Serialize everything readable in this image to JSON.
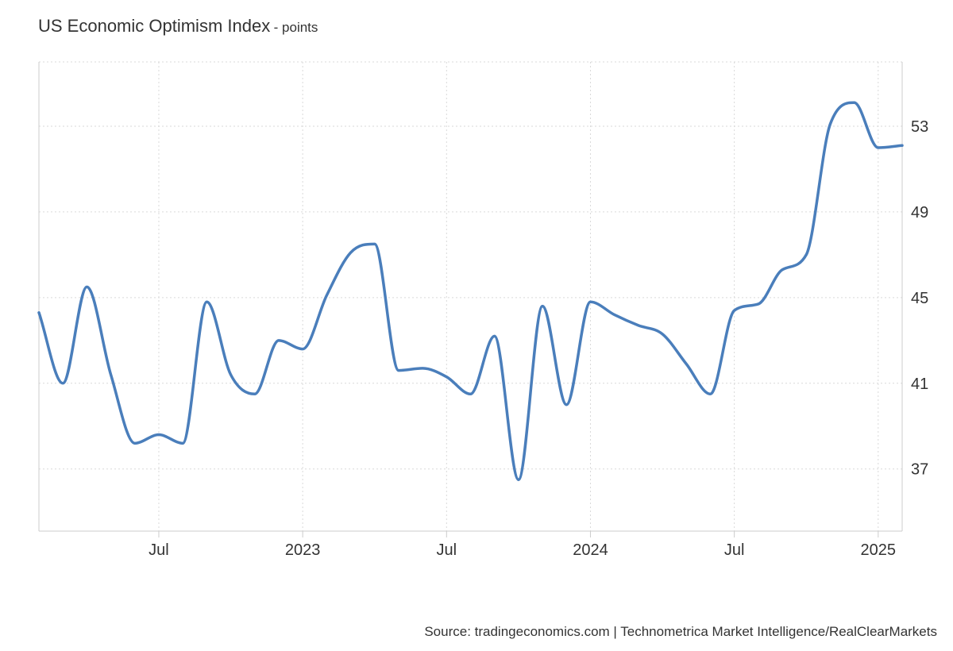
{
  "header": {
    "title": "US Economic Optimism Index",
    "unit": "- points"
  },
  "source": "Source: tradingeconomics.com | Technometrica Market Intelligence/RealClearMarkets",
  "colors": {
    "line": "#4a7ebb",
    "grid": "#d9d9d9",
    "axis": "#cccccc"
  },
  "chart_data": {
    "type": "line",
    "title": "US Economic Optimism Index",
    "unit": "points",
    "x": [
      "2022-02",
      "2022-03",
      "2022-04",
      "2022-05",
      "2022-06",
      "2022-07",
      "2022-08",
      "2022-09",
      "2022-10",
      "2022-11",
      "2022-12",
      "2023-01",
      "2023-02",
      "2023-03",
      "2023-04",
      "2023-05",
      "2023-06",
      "2023-07",
      "2023-08",
      "2023-09",
      "2023-10",
      "2023-11",
      "2023-12",
      "2024-01",
      "2024-02",
      "2024-03",
      "2024-04",
      "2024-05",
      "2024-06",
      "2024-07",
      "2024-08",
      "2024-09",
      "2024-10",
      "2024-11",
      "2024-12",
      "2025-01",
      "2025-02"
    ],
    "series": [
      {
        "values": [
          44.3,
          41.0,
          45.5,
          41.4,
          38.2,
          38.6,
          38.2,
          44.8,
          41.4,
          40.5,
          43.0,
          42.6,
          45.1,
          47.1,
          47.5,
          41.6,
          41.7,
          41.3,
          40.5,
          43.2,
          36.5,
          44.6,
          40.0,
          44.8,
          44.2,
          43.7,
          43.3,
          41.9,
          40.5,
          44.4,
          44.7,
          46.3,
          47.0,
          53.1,
          54.1,
          52.0,
          52.1
        ]
      }
    ],
    "ylim": [
      34.1,
      56.0
    ],
    "yticks": [
      37,
      41,
      45,
      49,
      53
    ],
    "xticks": [
      {
        "date": "2022-07",
        "label": "Jul"
      },
      {
        "date": "2023-01",
        "label": "2023"
      },
      {
        "date": "2023-07",
        "label": "Jul"
      },
      {
        "date": "2024-01",
        "label": "2024"
      },
      {
        "date": "2024-07",
        "label": "Jul"
      },
      {
        "date": "2025-01",
        "label": "2025"
      }
    ],
    "grid": true,
    "y_axis_side": "right"
  }
}
